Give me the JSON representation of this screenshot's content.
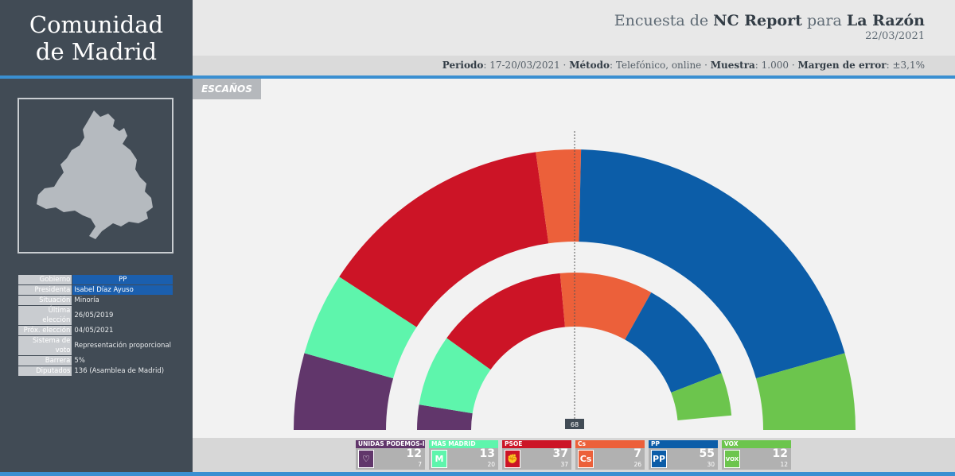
{
  "region": {
    "line1": "Comunidad",
    "line2": "de Madrid"
  },
  "survey": {
    "prefix": "Encuesta de",
    "pollster": "NC Report",
    "connector": "para",
    "media": "La Razón",
    "date": "22/03/2021"
  },
  "method": {
    "periodo_label": "Periodo",
    "periodo": "17-20/03/2021",
    "metodo_label": "Método",
    "metodo": "Telefónico, online",
    "muestra_label": "Muestra",
    "muestra": "1.000",
    "margen_label": "Margen de error",
    "margen": "±3,1%"
  },
  "tab": {
    "label": "ESCAÑOS"
  },
  "info": {
    "gobierno_k": "Gobierno",
    "gobierno_v": "PP",
    "presidenta_k": "Presidenta",
    "presidenta_v": "Isabel Díaz Ayuso",
    "situacion_k": "Situación",
    "situacion_v": "Minoría",
    "ultima_k": "Última elección",
    "ultima_v": "26/05/2019",
    "prox_k": "Próx. elección",
    "prox_v": "04/05/2021",
    "sistema_k": "Sistema de voto",
    "sistema_v": "Representación proporcional",
    "barrera_k": "Barrera",
    "barrera_v": "5%",
    "diputados_k": "Diputados",
    "diputados_v": "136 (Asamblea de Madrid)"
  },
  "colors": {
    "UP": "#61366b",
    "MM": "#5ef5ac",
    "PSOE": "#cc1426",
    "Cs": "#ec603a",
    "PP": "#0c5da8",
    "VOX": "#6cc54d"
  },
  "chart_data": {
    "type": "parliament",
    "total_seats": 136,
    "majority": 68,
    "majority_label": "68",
    "parties": [
      "UNIDAS PODEMOS-IU",
      "MÁS MADRID",
      "PSOE",
      "Cs",
      "PP",
      "VOX"
    ],
    "series": [
      {
        "name": "Encuesta",
        "ring": "outer",
        "values": [
          12,
          13,
          37,
          7,
          55,
          12
        ]
      },
      {
        "name": "Elecciones 26/05/2019",
        "ring": "inner",
        "values": [
          7,
          20,
          37,
          26,
          30,
          12
        ]
      }
    ]
  },
  "legend": [
    {
      "key": "UP",
      "name": "UNIDAS PODEMOS-IU",
      "seats": "12",
      "prev": "7",
      "icon": "heart-icon",
      "glyph": "♡"
    },
    {
      "key": "MM",
      "name": "MÁS MADRID",
      "seats": "13",
      "prev": "20",
      "icon": "mas-madrid-icon",
      "glyph": "M"
    },
    {
      "key": "PSOE",
      "name": "PSOE",
      "seats": "37",
      "prev": "37",
      "icon": "psoe-icon",
      "glyph": "✊"
    },
    {
      "key": "Cs",
      "name": "Cs",
      "seats": "7",
      "prev": "26",
      "icon": "cs-icon",
      "glyph": "Cs"
    },
    {
      "key": "PP",
      "name": "PP",
      "seats": "55",
      "prev": "30",
      "icon": "pp-icon",
      "glyph": "PP"
    },
    {
      "key": "VOX",
      "name": "VOX",
      "seats": "12",
      "prev": "12",
      "icon": "vox-icon",
      "glyph": "VOX"
    }
  ]
}
